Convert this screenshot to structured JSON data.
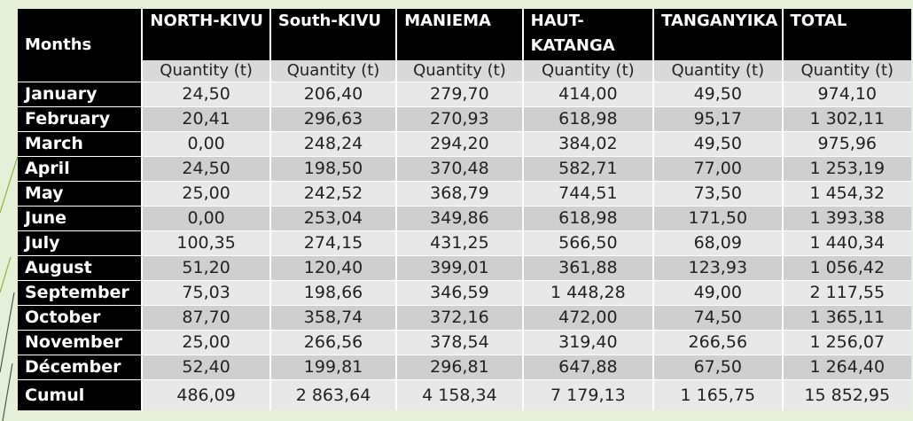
{
  "table": {
    "months_header": "Months",
    "provinces": [
      "NORTH-KIVU",
      "South-KIVU",
      "MANIEMA",
      "HAUT-KATANGA",
      "TANGANYIKA",
      "TOTAL"
    ],
    "unit_label": "Quantity (t)",
    "rows": [
      {
        "month": "January",
        "values": [
          "24,50",
          "206,40",
          "279,70",
          "414,00",
          "49,50",
          "974,10"
        ]
      },
      {
        "month": "February",
        "values": [
          "20,41",
          "296,63",
          "270,93",
          "618,98",
          "95,17",
          "1 302,11"
        ]
      },
      {
        "month": "March",
        "values": [
          "0,00",
          "248,24",
          "294,20",
          "384,02",
          "49,50",
          "975,96"
        ]
      },
      {
        "month": "April",
        "values": [
          "24,50",
          "198,50",
          "370,48",
          "582,71",
          "77,00",
          "1 253,19"
        ]
      },
      {
        "month": "May",
        "values": [
          "25,00",
          "242,52",
          "368,79",
          "744,51",
          "73,50",
          "1 454,32"
        ]
      },
      {
        "month": "June",
        "values": [
          "0,00",
          "253,04",
          "349,86",
          "618,98",
          "171,50",
          "1 393,38"
        ]
      },
      {
        "month": "July",
        "values": [
          "100,35",
          "274,15",
          "431,25",
          "566,50",
          "68,09",
          "1 440,34"
        ]
      },
      {
        "month": "August",
        "values": [
          "51,20",
          "120,40",
          "399,01",
          "361,88",
          "123,93",
          "1 056,42"
        ]
      },
      {
        "month": "September",
        "values": [
          "75,03",
          "198,66",
          "346,59",
          "1 448,28",
          "49,00",
          "2 117,55"
        ]
      },
      {
        "month": "October",
        "values": [
          "87,70",
          "358,74",
          "372,16",
          "472,00",
          "74,50",
          "1 365,11"
        ]
      },
      {
        "month": "November",
        "values": [
          "25,00",
          "266,56",
          "378,54",
          "319,40",
          "266,56",
          "1 256,07"
        ]
      },
      {
        "month": "Décember",
        "values": [
          "52,40",
          "199,81",
          "296,81",
          "647,88",
          "67,50",
          "1 264,40"
        ]
      },
      {
        "month": "Cumul",
        "values": [
          "486,09",
          "2 863,64",
          "4 158,34",
          "7 179,13",
          "1 165,75",
          "15 852,95"
        ]
      }
    ]
  },
  "colors": {
    "background": "#e6f0d9",
    "header": "#000000",
    "row_dark": "#cfcfcf",
    "row_light": "#e8e8e8",
    "accent": "#8db53f"
  }
}
